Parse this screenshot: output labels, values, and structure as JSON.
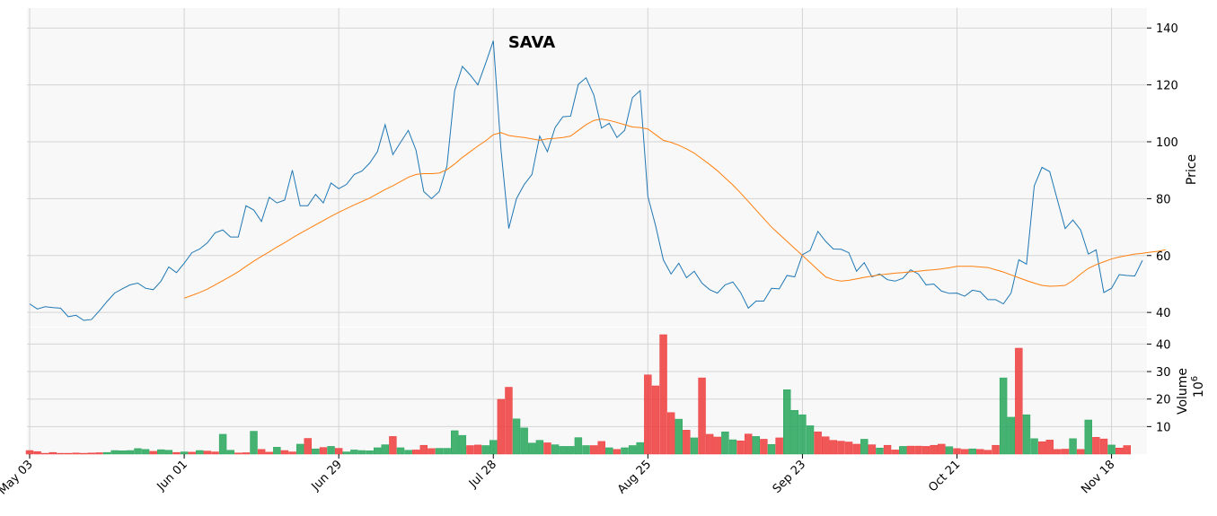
{
  "chart_data": {
    "type": "line",
    "title": "SAVA",
    "ylabel": "Price",
    "ylabel_volume": "Volume",
    "volume_exponent_base": "10",
    "volume_exponent": "6",
    "x_tick_labels": [
      "May 03",
      "Jun 01",
      "Jun 29",
      "Jul 28",
      "Aug 25",
      "Sep 23",
      "Oct 21",
      "Nov 18"
    ],
    "x_tick_index": [
      0,
      20,
      40,
      60,
      80,
      100,
      120,
      140
    ],
    "price_ylim": [
      35,
      147
    ],
    "price_yticks": [
      40,
      60,
      80,
      100,
      120,
      140
    ],
    "volume_ylim": [
      0,
      46
    ],
    "volume_yticks": [
      10,
      20,
      30,
      40
    ],
    "grid": true,
    "colors": {
      "close": "#1f77b4",
      "ma": "#ff7f0e",
      "up": "#26a65b",
      "down": "#ef3c3c",
      "panel_bg": "#f8f8f8",
      "grid": "#d4d4d4"
    },
    "series": [
      {
        "kind": "close",
        "values": [
          43,
          41.2,
          42,
          41.7,
          41.5,
          38.5,
          39,
          37.2,
          37.5,
          40.5,
          43.8,
          46.8,
          48.3,
          49.7,
          50.3,
          48.5,
          48,
          51,
          56,
          54,
          57.3,
          61,
          62.3,
          64.5,
          68,
          69,
          66.5,
          66.5,
          77.5,
          76,
          72,
          80.5,
          78.5,
          79.5,
          90,
          77.5,
          77.5,
          81.5,
          78.5,
          85.5,
          83.5,
          85,
          88.5,
          89.7,
          92.5,
          96.5,
          106,
          95.5,
          99.8,
          104,
          97,
          82.5,
          80,
          82.5,
          91.5,
          118,
          126.5,
          123.5,
          120,
          127.5,
          135.5,
          97,
          69.5,
          80,
          85,
          88.5,
          102,
          96.5,
          105,
          108.8,
          109,
          120.2,
          122.5,
          116.5,
          104.8,
          106.5,
          101.5,
          104,
          115.5,
          118,
          80.8,
          70.5,
          58.5,
          53.5,
          57.3,
          52.2,
          54.5,
          50.3,
          48,
          46.8,
          49.7,
          50.7,
          47,
          41.5,
          44,
          44,
          48.5,
          48.3,
          53,
          52.5,
          60.3,
          61.8,
          68.5,
          65,
          62.3,
          62.2,
          61,
          54.5,
          57.5,
          52.5,
          53.5,
          51.5,
          51,
          52,
          55,
          53.5,
          49.7,
          50,
          47.5,
          46.7,
          46.8,
          45.7,
          47.8,
          47.3,
          44.5,
          44.5,
          43,
          46.8,
          58.5,
          57,
          84.5,
          91,
          89.5,
          79.5,
          69.5,
          72.5,
          69,
          60.5,
          62,
          47,
          48.5,
          53.3,
          53,
          52.8,
          58.3
        ]
      },
      {
        "kind": "moving_average",
        "start_index": 20,
        "values": [
          45,
          46,
          47,
          48.2,
          49.7,
          51.2,
          52.7,
          54.3,
          56.2,
          58,
          59.7,
          61.3,
          63,
          64.5,
          66.2,
          67.8,
          69.3,
          70.8,
          72.3,
          73.8,
          75.2,
          76.5,
          77.8,
          79,
          80.2,
          81.7,
          83.2,
          84.5,
          86,
          87.5,
          88.5,
          88.8,
          88.8,
          89,
          90.2,
          92.2,
          94.5,
          96.5,
          98.5,
          100.3,
          102.5,
          103.2,
          102.2,
          101.8,
          101.5,
          101,
          100.5,
          101,
          101.2,
          101.5,
          102,
          104,
          106,
          107.5,
          108,
          107.5,
          106.8,
          106,
          105.2,
          105,
          104.5,
          102.5,
          100.5,
          99.8,
          98.8,
          97.5,
          96,
          94,
          92,
          89.8,
          87.3,
          84.8,
          82,
          79,
          76,
          73,
          70,
          67.5,
          65,
          62.5,
          60,
          57.5,
          55,
          52.5,
          51.5,
          51,
          51.3,
          51.8,
          52.3,
          52.8,
          53.2,
          53.5,
          53.8,
          54,
          54.3,
          54.5,
          54.8,
          55,
          55.3,
          55.7,
          56.2,
          56.2,
          56.2,
          56,
          55.8,
          55,
          54.2,
          53.2,
          52.2,
          51.2,
          50.3,
          49.5,
          49.2,
          49.3,
          49.5,
          51.2,
          53.5,
          55.5,
          56.8,
          57.8,
          58.8,
          59.5,
          60,
          60.5,
          60.8,
          61.2,
          61.5,
          62
        ]
      }
    ],
    "volume": {
      "values": [
        1.3,
        0.9,
        0.3,
        0.6,
        0.3,
        0.3,
        0.4,
        0.3,
        0.4,
        0.5,
        0.6,
        1.3,
        1.2,
        1.3,
        2,
        1.7,
        1,
        1.6,
        1.4,
        0.6,
        0.8,
        0.7,
        1.3,
        1.1,
        0.8,
        7.2,
        1.4,
        0.4,
        0.5,
        8.3,
        1.7,
        0.7,
        2.5,
        1.3,
        0.8,
        3.6,
        5.7,
        1.9,
        2.4,
        2.8,
        2.1,
        0.8,
        1.5,
        1.3,
        1.2,
        2.3,
        3.4,
        6.4,
        2.3,
        1.4,
        1.5,
        3.2,
        2,
        2.1,
        2.1,
        8.5,
        6.8,
        3.1,
        3.3,
        3.1,
        5,
        19.9,
        24.3,
        12.8,
        9.5,
        4,
        5,
        4.1,
        3.4,
        2.8,
        2.8,
        6,
        3.1,
        3.1,
        4.6,
        2.3,
        1.7,
        2.3,
        3.1,
        4.2,
        28.8,
        24.8,
        43.4,
        15.1,
        12.7,
        8.7,
        5.9,
        27.7,
        7.2,
        6.2,
        8.1,
        5.2,
        4.8,
        7.3,
        6.4,
        5.4,
        3.5,
        5.9,
        23.4,
        15.9,
        14.3,
        10.3,
        8.1,
        6.3,
        5,
        4.7,
        4.4,
        3.6,
        5.4,
        3.4,
        2.2,
        3.2,
        1.5,
        2.8,
        2.9,
        2.9,
        2.8,
        3.2,
        3.6,
        2.7,
        2,
        1.7,
        1.9,
        1.7,
        1.4,
        3.2,
        27.7,
        13.4,
        38.5,
        14.3,
        5.6,
        4.5,
        5.1,
        1.7,
        1.8,
        5.6,
        1.7,
        12.4,
        6.1,
        5.5,
        3.3,
        2.2,
        3.1
      ],
      "up": [
        0,
        0,
        0,
        0,
        0,
        0,
        0,
        0,
        0,
        0,
        1,
        1,
        1,
        1,
        1,
        1,
        0,
        1,
        1,
        0,
        1,
        0,
        1,
        0,
        0,
        1,
        1,
        0,
        0,
        1,
        0,
        0,
        1,
        0,
        0,
        1,
        0,
        1,
        0,
        1,
        0,
        1,
        1,
        1,
        1,
        1,
        1,
        0,
        1,
        1,
        0,
        0,
        0,
        1,
        1,
        1,
        1,
        0,
        0,
        1,
        1,
        0,
        0,
        1,
        1,
        1,
        1,
        0,
        1,
        1,
        1,
        1,
        1,
        0,
        0,
        1,
        0,
        1,
        1,
        1,
        0,
        0,
        0,
        0,
        1,
        0,
        1,
        0,
        0,
        0,
        1,
        1,
        0,
        0,
        1,
        0,
        1,
        0,
        1,
        1,
        1,
        1,
        0,
        0,
        0,
        0,
        0,
        0,
        1,
        0,
        1,
        0,
        0,
        1,
        0,
        0,
        0,
        0,
        0,
        1,
        0,
        0,
        1,
        0,
        0,
        0,
        1,
        1,
        0,
        1,
        1,
        0,
        0,
        0,
        0,
        1,
        0,
        1,
        0,
        0,
        1,
        0,
        0,
        1
      ]
    }
  }
}
